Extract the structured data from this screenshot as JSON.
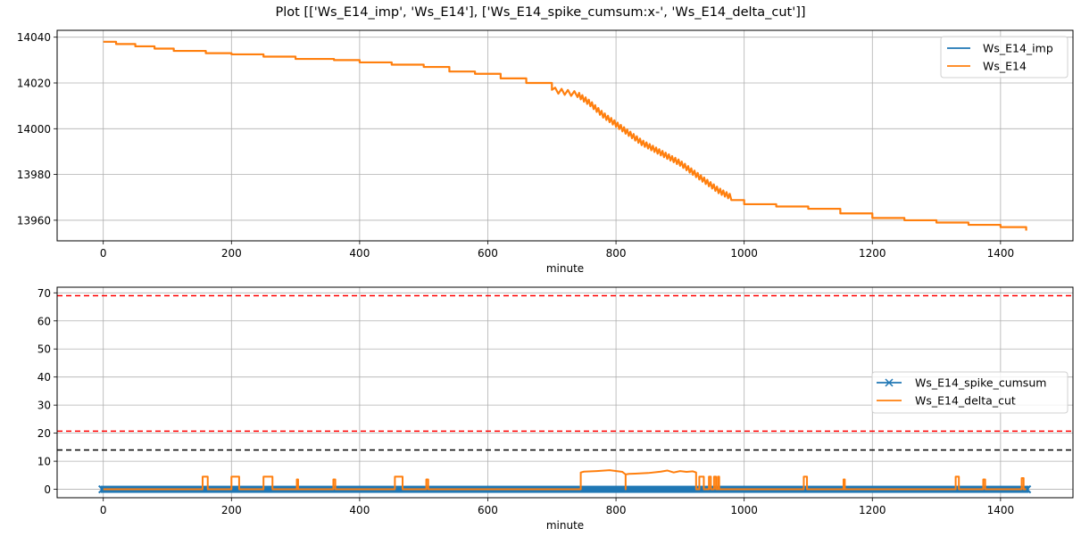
{
  "figure": {
    "title": "Plot [['Ws_E14_imp', 'Ws_E14'], ['Ws_E14_spike_cumsum:x-', 'Ws_E14_delta_cut']]"
  },
  "colors": {
    "blue": "#1f77b4",
    "orange": "#ff7f0e",
    "red_dashed": "#ff0000",
    "black_dashed": "#000000",
    "grid": "#b0b0b0"
  },
  "chart_data": [
    {
      "type": "line",
      "title": "",
      "xlabel": "minute",
      "ylabel": "",
      "xlim": [
        -72,
        1513
      ],
      "ylim": [
        13951,
        14043
      ],
      "xticks": [
        0,
        200,
        400,
        600,
        800,
        1000,
        1200,
        1400
      ],
      "yticks": [
        13960,
        13980,
        14000,
        14020,
        14040
      ],
      "xtick_labels": [
        "0",
        "200",
        "400",
        "600",
        "800",
        "1000",
        "1200",
        "1400"
      ],
      "ytick_labels": [
        "13960",
        "13980",
        "14000",
        "14020",
        "14040"
      ],
      "grid": true,
      "legend_position": "upper right",
      "legend": [
        "Ws_E14_imp",
        "Ws_E14"
      ],
      "series": [
        {
          "name": "Ws_E14_imp",
          "color": "#1f77b4",
          "x": [
            0,
            20,
            50,
            80,
            110,
            160,
            200,
            250,
            300,
            360,
            400,
            450,
            500,
            540,
            580,
            620,
            660,
            700,
            740,
            760,
            780,
            800,
            820,
            840,
            860,
            880,
            900,
            920,
            940,
            960,
            980,
            1000,
            1050,
            1100,
            1150,
            1200,
            1250,
            1300,
            1350,
            1400,
            1440
          ],
          "values": [
            14038,
            14037,
            14036,
            14035,
            14034,
            14033,
            14032.5,
            14031.5,
            14030.5,
            14030,
            14029,
            14028,
            14027,
            14025,
            14024,
            14022,
            14020,
            14017,
            14015,
            14011,
            14006,
            14002,
            13998,
            13994,
            13991,
            13988,
            13985,
            13981,
            13977,
            13973,
            13970,
            13967,
            13966,
            13965,
            13963,
            13961,
            13960,
            13959,
            13958,
            13957,
            13955.5
          ]
        },
        {
          "name": "Ws_E14",
          "color": "#ff7f0e",
          "x": [
            0,
            20,
            50,
            80,
            110,
            160,
            200,
            250,
            300,
            360,
            400,
            450,
            500,
            540,
            580,
            620,
            660,
            700,
            740,
            760,
            780,
            800,
            820,
            840,
            860,
            880,
            900,
            920,
            940,
            960,
            980,
            1000,
            1050,
            1100,
            1150,
            1200,
            1250,
            1300,
            1350,
            1400,
            1440
          ],
          "values": [
            14038,
            14037,
            14036,
            14035,
            14034,
            14033,
            14032.5,
            14031.5,
            14030.5,
            14030,
            14029,
            14028,
            14027,
            14025,
            14024,
            14022,
            14020,
            14017,
            14015,
            14011,
            14006,
            14002,
            13998,
            13994,
            13991,
            13988,
            13985,
            13981,
            13977,
            13973,
            13970,
            13967,
            13966,
            13965,
            13963,
            13961,
            13960,
            13959,
            13958,
            13957,
            13955.5
          ]
        }
      ]
    },
    {
      "type": "line",
      "title": "",
      "xlabel": "minute",
      "ylabel": "",
      "xlim": [
        -72,
        1513
      ],
      "ylim": [
        -3,
        72
      ],
      "xticks": [
        0,
        200,
        400,
        600,
        800,
        1000,
        1200,
        1400
      ],
      "yticks": [
        0,
        10,
        20,
        30,
        40,
        50,
        60,
        70
      ],
      "xtick_labels": [
        "0",
        "200",
        "400",
        "600",
        "800",
        "1000",
        "1200",
        "1400"
      ],
      "ytick_labels": [
        "0",
        "10",
        "20",
        "30",
        "40",
        "50",
        "60",
        "70"
      ],
      "grid": true,
      "legend_position": "center right",
      "legend": [
        "Ws_E14_spike_cumsum",
        "Ws_E14_delta_cut"
      ],
      "hlines": [
        {
          "y": 69,
          "color": "#ff0000",
          "style": "dashed"
        },
        {
          "y": 20.7,
          "color": "#ff0000",
          "style": "dashed"
        },
        {
          "y": 14,
          "color": "#000000",
          "style": "dashed"
        }
      ],
      "series": [
        {
          "name": "Ws_E14_spike_cumsum",
          "color": "#1f77b4",
          "marker": "x",
          "x": [
            0,
            1440
          ],
          "values": [
            0,
            0
          ]
        },
        {
          "name": "Ws_E14_delta_cut",
          "color": "#ff7f0e",
          "spikes": [
            {
              "x": 155,
              "w": 8,
              "h": 4.5
            },
            {
              "x": 200,
              "w": 12,
              "h": 4.5
            },
            {
              "x": 250,
              "w": 14,
              "h": 4.5
            },
            {
              "x": 302,
              "w": 2,
              "h": 3.5
            },
            {
              "x": 359,
              "w": 3,
              "h": 3.5
            },
            {
              "x": 455,
              "w": 12,
              "h": 4.5
            },
            {
              "x": 504,
              "w": 3,
              "h": 3.5
            },
            {
              "x": 1093,
              "w": 5,
              "h": 4.5
            },
            {
              "x": 1155,
              "w": 2,
              "h": 3.5
            },
            {
              "x": 1330,
              "w": 5,
              "h": 4.5
            },
            {
              "x": 1373,
              "w": 3,
              "h": 3.5
            },
            {
              "x": 1433,
              "w": 3,
              "h": 4
            }
          ],
          "plateau": {
            "x": [
              745,
              750,
              770,
              790,
              810,
              815,
              820,
              830,
              850,
              870,
              880,
              890,
              900,
              910,
              920,
              925
            ],
            "values": [
              6,
              6.3,
              6.5,
              6.8,
              6.2,
              5.3,
              5.5,
              5.6,
              5.8,
              6.3,
              6.7,
              6.0,
              6.5,
              6.2,
              6.4,
              6.0
            ]
          },
          "dip_at": 815,
          "tail_spikes": [
            {
              "x": 930,
              "w": 7,
              "h": 4.5
            },
            {
              "x": 945,
              "w": 3,
              "h": 4.5
            },
            {
              "x": 953,
              "w": 3,
              "h": 4.5
            },
            {
              "x": 959,
              "w": 2,
              "h": 4.5
            }
          ],
          "baseline": 0
        }
      ]
    }
  ]
}
